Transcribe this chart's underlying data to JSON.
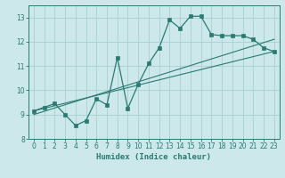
{
  "xlabel": "Humidex (Indice chaleur)",
  "xlim": [
    -0.5,
    23.5
  ],
  "ylim": [
    8,
    13.5
  ],
  "yticks": [
    8,
    9,
    10,
    11,
    12,
    13
  ],
  "xticks": [
    0,
    1,
    2,
    3,
    4,
    5,
    6,
    7,
    8,
    9,
    10,
    11,
    12,
    13,
    14,
    15,
    16,
    17,
    18,
    19,
    20,
    21,
    22,
    23
  ],
  "bg_color": "#cce8ea",
  "grid_color": "#a8cfd2",
  "line_color": "#2a7a72",
  "series1_x": [
    0,
    1,
    2,
    3,
    4,
    5,
    6,
    7,
    8,
    9,
    10,
    11,
    12,
    13,
    14,
    15,
    16,
    17,
    18,
    19,
    20,
    21,
    22,
    23
  ],
  "series1_y": [
    9.15,
    9.3,
    9.45,
    9.0,
    8.55,
    8.75,
    9.65,
    9.4,
    11.35,
    9.25,
    10.25,
    11.1,
    11.75,
    12.9,
    12.55,
    13.05,
    13.05,
    12.3,
    12.25,
    12.25,
    12.25,
    12.1,
    11.75,
    11.6
  ],
  "series2_x": [
    0,
    23
  ],
  "series2_y": [
    9.15,
    11.6
  ],
  "series3_x": [
    0,
    23
  ],
  "series3_y": [
    9.0,
    12.1
  ]
}
